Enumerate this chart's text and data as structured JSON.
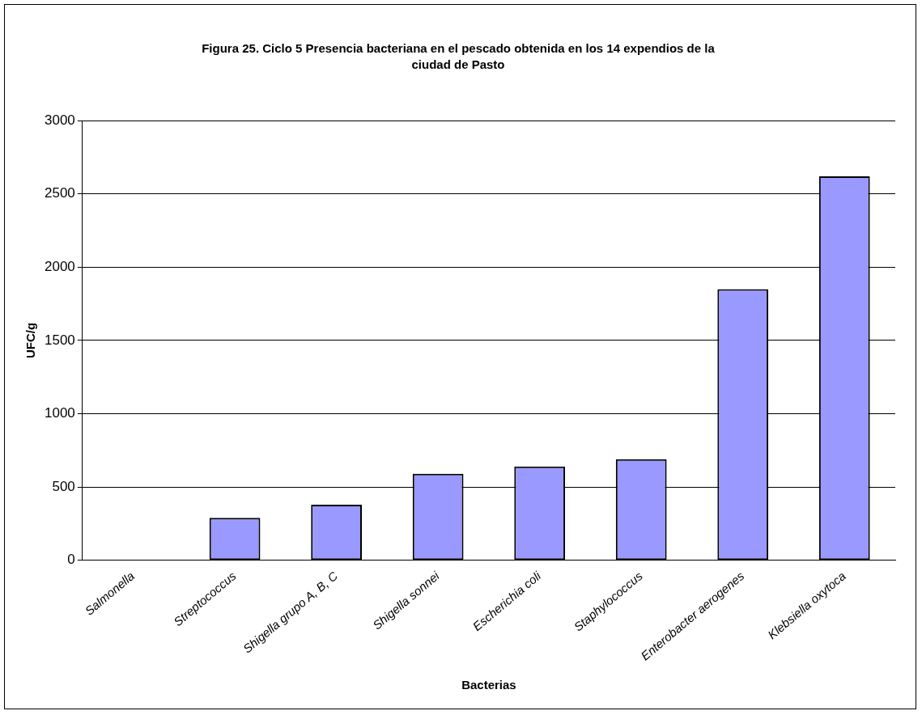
{
  "chart_data": {
    "type": "bar",
    "title": "Figura 25. Ciclo 5 Presencia bacteriana en el pescado obtenida en los 14 expendios de la ciudad de Pasto",
    "xlabel": "Bacterias",
    "ylabel": "UFC/g",
    "categories": [
      "Salmonella",
      "Streptococcus",
      "Shigella grupo A, B, C",
      "Shigella sonnei",
      "Escherichia coli",
      "Staphylococcus",
      "Enterobacter aerogenes",
      "Klebsiella oxytoca"
    ],
    "values": [
      0,
      290,
      380,
      590,
      640,
      690,
      1850,
      2620
    ],
    "color": "#9999ff",
    "ylim": [
      0,
      3000
    ],
    "yticks": [
      0,
      500,
      1000,
      1500,
      2000,
      2500,
      3000
    ],
    "grid": "y",
    "legend": false
  }
}
